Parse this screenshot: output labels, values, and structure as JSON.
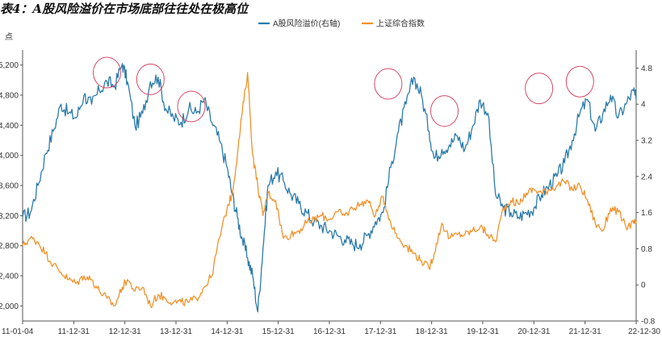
{
  "title": "表4：A股风险溢价在市场底部往往处在极高位",
  "source_note": "",
  "chart_data": {
    "type": "line",
    "title": "表4：A股风险溢价在市场底部往往处在极高位",
    "left_axis_unit": "点",
    "left_axis": {
      "min": 1800,
      "max": 5400,
      "ticks": [
        2000,
        2400,
        2800,
        3200,
        3600,
        4000,
        4400,
        4800,
        5200
      ],
      "tick_labels": [
        "2,000",
        "2,400",
        "2,800",
        "3,200",
        "3,600",
        "4,000",
        "4,400",
        "4,800",
        "5,200"
      ]
    },
    "right_axis": {
      "min": -0.8,
      "max": 5.2,
      "ticks": [
        -0.8,
        0,
        0.8,
        1.6,
        2.4,
        3.2,
        4,
        4.8
      ],
      "tick_labels": [
        "-0.8",
        "0",
        "0.8",
        "1.6",
        "2.4",
        "3.2",
        "4",
        "4.8"
      ]
    },
    "x_axis": {
      "start": 2011.0,
      "end": 2023.0,
      "ticks": [
        2011.0,
        2012.0,
        2013.0,
        2014.0,
        2015.0,
        2016.0,
        2017.0,
        2018.0,
        2019.0,
        2020.0,
        2021.0,
        2022.0,
        2023.0
      ],
      "tick_labels": [
        "11-01-04",
        "11-12-31",
        "12-12-31",
        "13-12-31",
        "14-12-31",
        "15-12-31",
        "16-12-31",
        "17-12-31",
        "18-12-31",
        "19-12-31",
        "20-12-31",
        "21-12-31",
        "22-12-30"
      ]
    },
    "legend_position": "top-center",
    "series": [
      {
        "name": "A股风险溢价(右轴)",
        "axis": "right",
        "color": "#2b7bab",
        "x": [
          2011.0,
          2011.15,
          2011.3,
          2011.45,
          2011.6,
          2011.75,
          2011.9,
          2012.05,
          2012.2,
          2012.35,
          2012.5,
          2012.65,
          2012.8,
          2012.95,
          2013.05,
          2013.2,
          2013.35,
          2013.5,
          2013.65,
          2013.8,
          2013.95,
          2014.1,
          2014.25,
          2014.4,
          2014.55,
          2014.7,
          2014.85,
          2015.0,
          2015.1,
          2015.2,
          2015.3,
          2015.4,
          2015.5,
          2015.6,
          2015.7,
          2015.8,
          2015.95,
          2016.1,
          2016.25,
          2016.4,
          2016.55,
          2016.7,
          2016.85,
          2017.0,
          2017.15,
          2017.3,
          2017.45,
          2017.6,
          2017.75,
          2017.9,
          2018.05,
          2018.2,
          2018.35,
          2018.5,
          2018.65,
          2018.8,
          2018.95,
          2019.05,
          2019.2,
          2019.35,
          2019.5,
          2019.65,
          2019.8,
          2019.95,
          2020.1,
          2020.25,
          2020.4,
          2020.55,
          2020.7,
          2020.85,
          2021.0,
          2021.15,
          2021.3,
          2021.45,
          2021.6,
          2021.75,
          2021.9,
          2022.05,
          2022.2,
          2022.35,
          2022.5,
          2022.65,
          2022.8,
          2022.95,
          2023.0
        ],
        "values": [
          1.5,
          1.6,
          2.2,
          2.9,
          3.4,
          4.0,
          3.8,
          3.7,
          4.2,
          4.0,
          4.3,
          4.5,
          4.4,
          4.9,
          4.5,
          3.5,
          3.8,
          4.5,
          4.6,
          3.9,
          3.7,
          3.6,
          3.9,
          3.8,
          4.1,
          3.6,
          3.2,
          2.6,
          2.0,
          1.5,
          1.0,
          0.6,
          0.2,
          -0.6,
          0.8,
          2.2,
          2.5,
          2.3,
          2.0,
          1.8,
          1.6,
          1.4,
          1.3,
          1.2,
          1.1,
          1.0,
          0.9,
          0.9,
          1.1,
          1.4,
          1.6,
          2.6,
          3.4,
          4.0,
          4.6,
          4.2,
          3.4,
          2.8,
          3.0,
          3.1,
          3.3,
          3.0,
          3.5,
          4.1,
          3.8,
          2.0,
          1.7,
          1.6,
          1.5,
          1.6,
          1.7,
          2.0,
          2.2,
          2.4,
          2.7,
          3.2,
          3.8,
          4.1,
          3.4,
          3.8,
          4.2,
          3.7,
          4.0,
          4.3,
          4.1
        ]
      },
      {
        "name": "上证综合指数",
        "axis": "left",
        "color": "#f0922b",
        "x": [
          2011.0,
          2011.15,
          2011.3,
          2011.45,
          2011.6,
          2011.75,
          2011.9,
          2012.05,
          2012.2,
          2012.35,
          2012.5,
          2012.65,
          2012.8,
          2012.95,
          2013.05,
          2013.2,
          2013.35,
          2013.5,
          2013.65,
          2013.8,
          2013.95,
          2014.1,
          2014.25,
          2014.4,
          2014.55,
          2014.7,
          2014.85,
          2015.0,
          2015.1,
          2015.2,
          2015.3,
          2015.4,
          2015.5,
          2015.6,
          2015.7,
          2015.8,
          2015.95,
          2016.1,
          2016.25,
          2016.4,
          2016.55,
          2016.7,
          2016.85,
          2017.0,
          2017.15,
          2017.3,
          2017.45,
          2017.6,
          2017.75,
          2017.9,
          2018.05,
          2018.2,
          2018.35,
          2018.5,
          2018.65,
          2018.8,
          2018.95,
          2019.05,
          2019.2,
          2019.35,
          2019.5,
          2019.65,
          2019.8,
          2019.95,
          2020.1,
          2020.25,
          2020.4,
          2020.55,
          2020.7,
          2020.85,
          2021.0,
          2021.15,
          2021.3,
          2021.45,
          2021.6,
          2021.75,
          2021.9,
          2022.05,
          2022.2,
          2022.35,
          2022.5,
          2022.65,
          2022.8,
          2022.95,
          2023.0
        ],
        "values": [
          2800,
          2900,
          2850,
          2700,
          2550,
          2450,
          2350,
          2300,
          2400,
          2350,
          2200,
          2100,
          2000,
          2250,
          2350,
          2200,
          2250,
          2000,
          2150,
          2100,
          2050,
          2050,
          2050,
          2100,
          2250,
          2400,
          2900,
          3300,
          3500,
          4000,
          4600,
          5100,
          4000,
          3600,
          3200,
          3500,
          3400,
          2900,
          2950,
          3000,
          3100,
          3150,
          3200,
          3150,
          3250,
          3200,
          3300,
          3350,
          3400,
          3200,
          3450,
          3100,
          2900,
          2800,
          2700,
          2600,
          2500,
          2700,
          3100,
          2900,
          2950,
          2950,
          3000,
          3050,
          2950,
          2850,
          3300,
          3400,
          3350,
          3500,
          3550,
          3500,
          3550,
          3600,
          3650,
          3550,
          3600,
          3400,
          3100,
          3000,
          3300,
          3250,
          3050,
          3100,
          3100
        ]
      }
    ],
    "annotations": [
      {
        "type": "ellipse",
        "x": 2012.65,
        "y_right": 4.7,
        "color": "#d64a6a"
      },
      {
        "type": "ellipse",
        "x": 2013.5,
        "y_right": 4.55,
        "color": "#d64a6a"
      },
      {
        "type": "ellipse",
        "x": 2014.3,
        "y_right": 3.95,
        "color": "#d64a6a"
      },
      {
        "type": "ellipse",
        "x": 2018.15,
        "y_right": 4.45,
        "color": "#d64a6a"
      },
      {
        "type": "ellipse",
        "x": 2019.25,
        "y_right": 3.85,
        "color": "#d64a6a"
      },
      {
        "type": "ellipse",
        "x": 2021.1,
        "y_right": 4.35,
        "color": "#d64a6a"
      },
      {
        "type": "ellipse",
        "x": 2021.9,
        "y_right": 4.5,
        "color": "#d64a6a"
      }
    ]
  }
}
